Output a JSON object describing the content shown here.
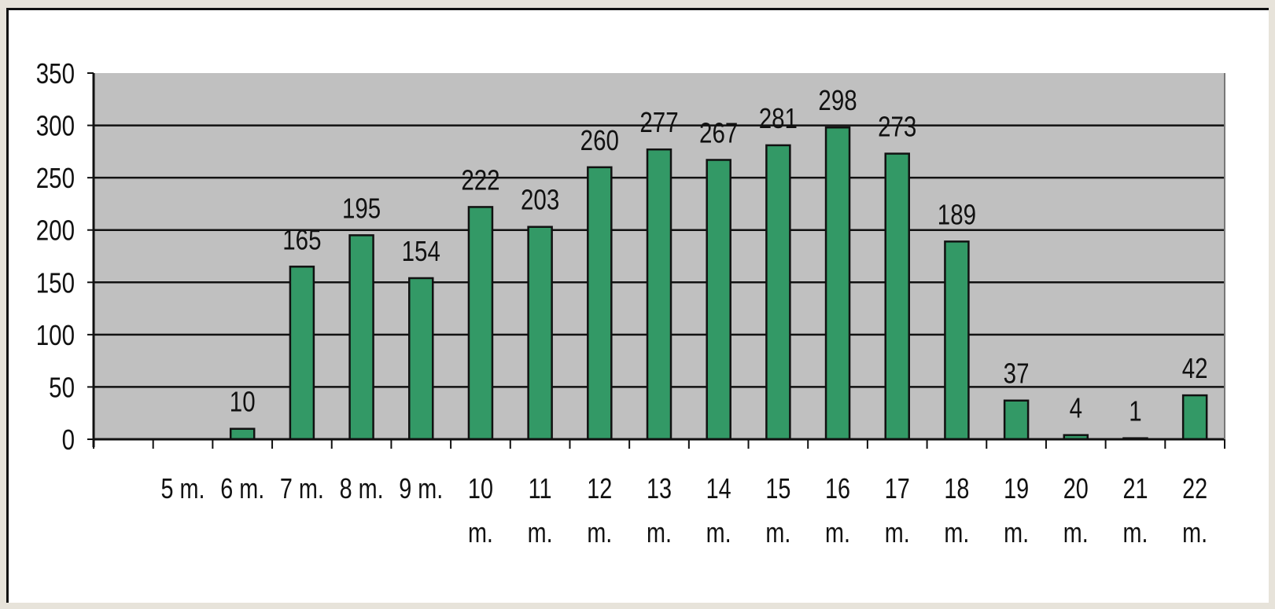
{
  "chart_data": {
    "type": "bar",
    "categories": [
      [
        "5 m."
      ],
      [
        "6 m."
      ],
      [
        "7 m."
      ],
      [
        "8 m."
      ],
      [
        "9 m."
      ],
      [
        "10",
        "m."
      ],
      [
        "11",
        "m."
      ],
      [
        "12",
        "m."
      ],
      [
        "13",
        "m."
      ],
      [
        "14",
        "m."
      ],
      [
        "15",
        "m."
      ],
      [
        "16",
        "m."
      ],
      [
        "17",
        "m."
      ],
      [
        "18",
        "m."
      ],
      [
        "19",
        "m."
      ],
      [
        "20",
        "m."
      ],
      [
        "21",
        "m."
      ],
      [
        "22",
        "m."
      ]
    ],
    "values": [
      null,
      10,
      165,
      195,
      154,
      222,
      203,
      260,
      277,
      267,
      281,
      298,
      273,
      189,
      37,
      4,
      1,
      42
    ],
    "labels": [
      "",
      "10",
      "165",
      "195",
      "154",
      "222",
      "203",
      "260",
      "277",
      "267",
      "281",
      "298",
      "273",
      "189",
      "37",
      "4",
      "1",
      "42"
    ],
    "yticks": [
      "0",
      "50",
      "100",
      "150",
      "200",
      "250",
      "300",
      "350"
    ],
    "ylim": [
      0,
      350
    ],
    "grid": true,
    "legend": "none",
    "colors": {
      "bar": "#339966",
      "bar_edge": "#111111",
      "plot_bg": "#c0c0c0",
      "gridline": "#111111"
    }
  }
}
